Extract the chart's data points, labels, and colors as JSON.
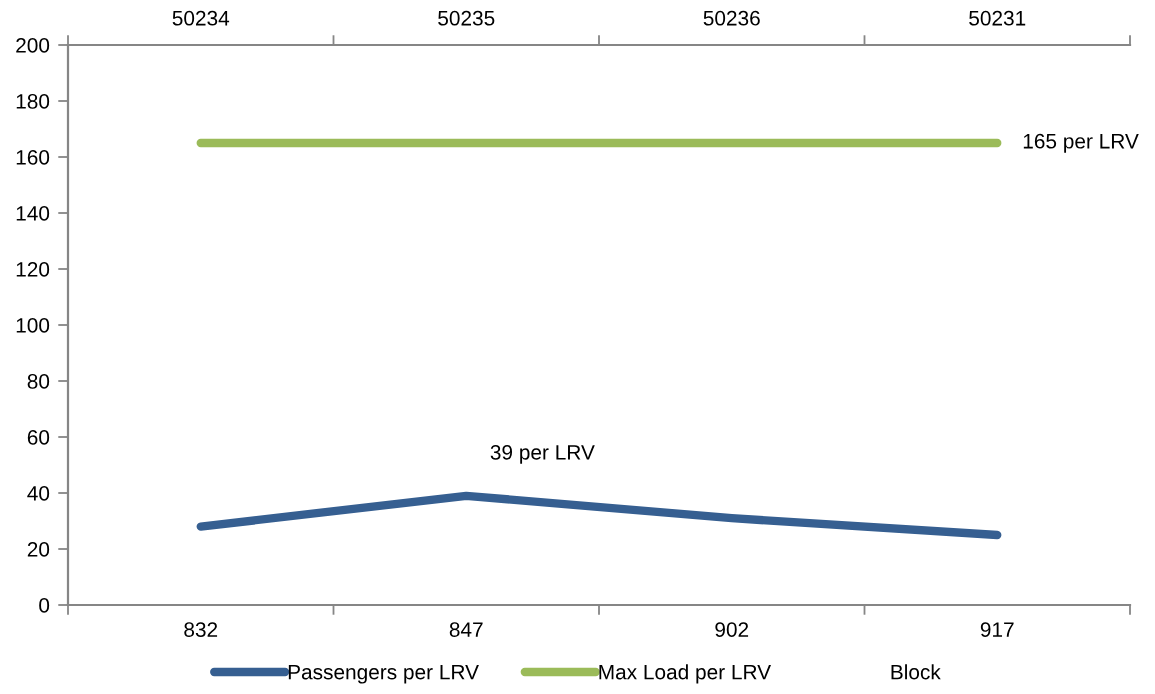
{
  "chart_data": {
    "type": "line",
    "categories": [
      "832",
      "847",
      "902",
      "917"
    ],
    "ylim": [
      0,
      200
    ],
    "yticks": [
      0,
      20,
      40,
      60,
      80,
      100,
      120,
      140,
      160,
      180,
      200
    ],
    "series": [
      {
        "name": "Passengers per LRV",
        "color": "#365f91",
        "values": [
          28,
          39,
          31,
          25
        ]
      },
      {
        "name": "Max Load per LRV",
        "color": "#9bbb59",
        "values": [
          165,
          165,
          165,
          165
        ]
      },
      {
        "name": "Block",
        "values": [
          null,
          null,
          null,
          null
        ]
      }
    ],
    "annotations": [
      "50234",
      "50235",
      "50236",
      "50231",
      {
        "text": "39 per LRV",
        "x": "847",
        "y": 39
      },
      {
        "text": "165 per LRV",
        "x": "917",
        "y": 165
      }
    ],
    "legend": "bottom",
    "grid": false,
    "marker": "none",
    "line_style": "solid"
  }
}
